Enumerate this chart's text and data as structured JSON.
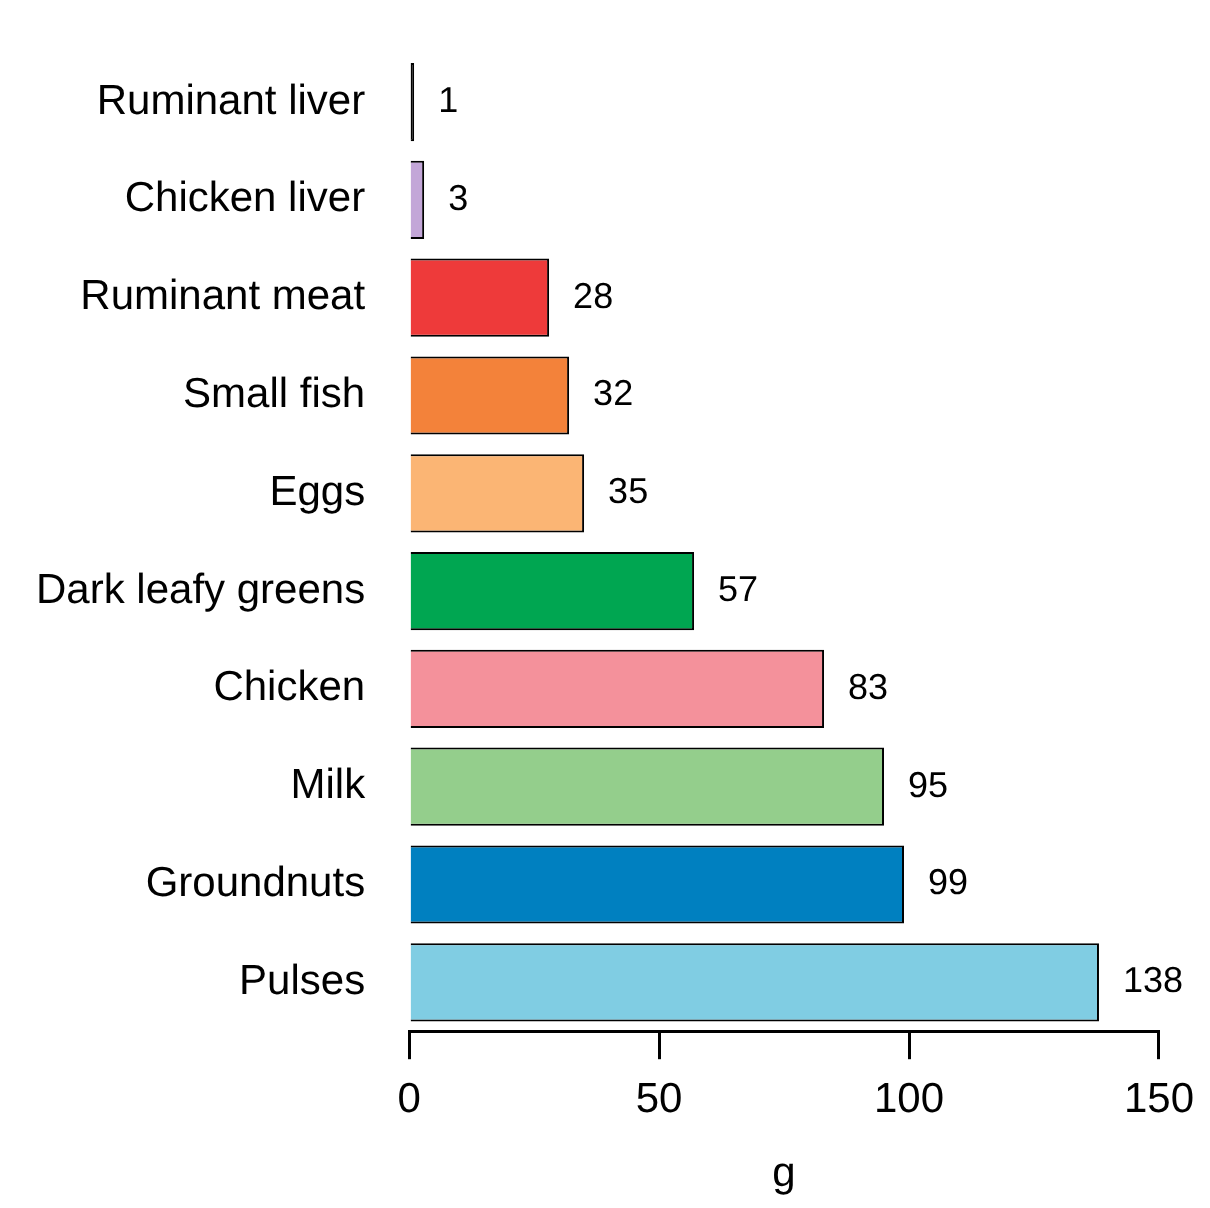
{
  "chart_data": {
    "type": "bar",
    "orientation": "horizontal",
    "xlabel": "g",
    "categories": [
      "Ruminant liver",
      "Chicken liver",
      "Ruminant meat",
      "Small fish",
      "Eggs",
      "Dark leafy greens",
      "Chicken",
      "Milk",
      "Groundnuts",
      "Pulses"
    ],
    "values": [
      1,
      3,
      28,
      32,
      35,
      57,
      83,
      95,
      99,
      138
    ],
    "colors": [
      "#000000",
      "#c3a6d8",
      "#ee3a3a",
      "#f3823a",
      "#fbb574",
      "#00a651",
      "#f4919b",
      "#94ce8c",
      "#0080c0",
      "#80cde3"
    ],
    "xlim": [
      0,
      150
    ],
    "xticks": [
      0,
      50,
      100,
      150
    ],
    "data_labels": true,
    "grid": false,
    "legend": false
  }
}
